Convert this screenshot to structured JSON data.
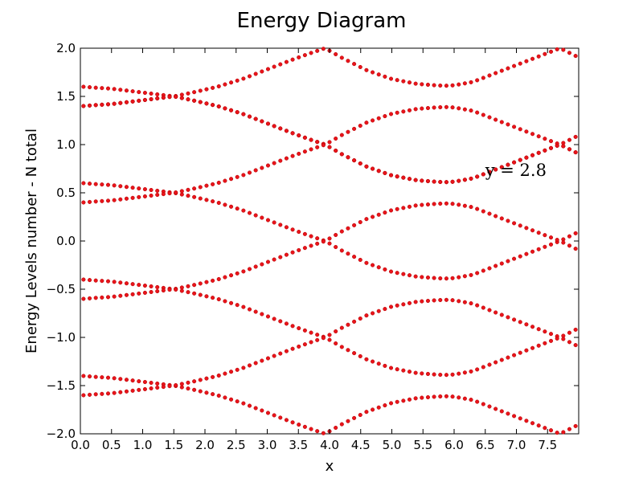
{
  "chart_data": {
    "type": "scatter",
    "title": "Energy Diagram",
    "xlabel": "x",
    "ylabel": "Energy Levels number - N total",
    "xlim": [
      0.0,
      8.0
    ],
    "ylim": [
      -2.0,
      2.0
    ],
    "x_ticks": [
      0.0,
      0.5,
      1.0,
      1.5,
      2.0,
      2.5,
      3.0,
      3.5,
      4.0,
      4.5,
      5.0,
      5.5,
      6.0,
      6.5,
      7.0,
      7.5
    ],
    "x_tick_labels": [
      "0.0",
      "0.5",
      "1.0",
      "1.5",
      "2.0",
      "2.5",
      "3.0",
      "3.5",
      "4.0",
      "4.5",
      "5.0",
      "5.5",
      "6.0",
      "6.5",
      "7.0",
      "7.5"
    ],
    "y_ticks": [
      2.0,
      1.5,
      1.0,
      0.5,
      0.0,
      -0.5,
      -1.0,
      -1.5,
      -2.0
    ],
    "y_tick_labels": [
      "2.0",
      "1.5",
      "1.0",
      "0.5",
      "0.0",
      "−0.5",
      "−1.0",
      "−1.5",
      "−2.0"
    ],
    "grid": false,
    "legend": "none",
    "marker_color": "#e8141b",
    "marker_edge_color": "#b30000",
    "annotations": [
      {
        "text": "y = 2.8",
        "x": 6.5,
        "y": 0.7
      }
    ],
    "series": [
      {
        "x": [
          0.05,
          0.25,
          0.5,
          0.75,
          1.0,
          1.25,
          1.5,
          1.8,
          2.2,
          2.6,
          3.0,
          3.4,
          3.7,
          3.93,
          4.2,
          4.6,
          5.0,
          5.4,
          5.7,
          5.85,
          6.0,
          6.3,
          6.7,
          7.1,
          7.5,
          7.7,
          7.95
        ],
        "y": [
          1.6,
          1.59,
          1.58,
          1.56,
          1.54,
          1.52,
          1.5,
          1.46,
          1.4,
          1.32,
          1.22,
          1.12,
          1.05,
          1.0,
          0.9,
          0.77,
          0.68,
          0.63,
          0.615,
          0.61,
          0.615,
          0.65,
          0.75,
          0.85,
          0.95,
          1.0,
          1.08
        ]
      },
      {
        "x": [
          0.05,
          0.25,
          0.5,
          0.75,
          1.0,
          1.25,
          1.5,
          1.8,
          2.2,
          2.6,
          3.0,
          3.4,
          3.7,
          3.93,
          4.2,
          4.6,
          5.0,
          5.4,
          5.7,
          5.85,
          6.0,
          6.3,
          6.7,
          7.1,
          7.5,
          7.7,
          7.95
        ],
        "y": [
          1.4,
          1.41,
          1.42,
          1.44,
          1.46,
          1.48,
          1.5,
          1.54,
          1.6,
          1.68,
          1.78,
          1.88,
          1.95,
          2.0,
          1.9,
          1.77,
          1.68,
          1.63,
          1.615,
          1.61,
          1.615,
          1.65,
          1.75,
          1.85,
          1.95,
          2.0,
          1.92
        ]
      },
      {
        "x": [
          0.05,
          0.25,
          0.5,
          0.75,
          1.0,
          1.25,
          1.5,
          1.8,
          2.2,
          2.6,
          3.0,
          3.4,
          3.7,
          3.93,
          4.2,
          4.6,
          5.0,
          5.4,
          5.7,
          5.85,
          6.0,
          6.3,
          6.7,
          7.1,
          7.5,
          7.7,
          7.95
        ],
        "y": [
          1.4,
          1.41,
          1.42,
          1.44,
          1.46,
          1.48,
          1.5,
          1.46,
          1.4,
          1.32,
          1.22,
          1.12,
          1.05,
          1.0,
          1.1,
          1.23,
          1.32,
          1.37,
          1.385,
          1.39,
          1.385,
          1.35,
          1.25,
          1.15,
          1.05,
          1.0,
          0.92
        ]
      },
      {
        "x": [
          0.05,
          0.25,
          0.5,
          0.75,
          1.0,
          1.25,
          1.5,
          1.8,
          2.2,
          2.6,
          3.0,
          3.4,
          3.7,
          3.93,
          4.2,
          4.6,
          5.0,
          5.4,
          5.7,
          5.85,
          6.0,
          6.3,
          6.7,
          7.1,
          7.5,
          7.7,
          7.95
        ],
        "y": [
          0.6,
          0.59,
          0.58,
          0.56,
          0.54,
          0.52,
          0.5,
          0.46,
          0.4,
          0.32,
          0.22,
          0.12,
          0.05,
          0.0,
          -0.1,
          -0.23,
          -0.32,
          -0.37,
          -0.385,
          -0.39,
          -0.385,
          -0.35,
          -0.25,
          -0.15,
          -0.05,
          0.0,
          0.08
        ]
      },
      {
        "x": [
          0.05,
          0.25,
          0.5,
          0.75,
          1.0,
          1.25,
          1.5,
          1.8,
          2.2,
          2.6,
          3.0,
          3.4,
          3.7,
          3.93,
          4.2,
          4.6,
          5.0,
          5.4,
          5.7,
          5.85,
          6.0,
          6.3,
          6.7,
          7.1,
          7.5,
          7.7,
          7.95
        ],
        "y": [
          0.4,
          0.41,
          0.42,
          0.44,
          0.46,
          0.48,
          0.5,
          0.54,
          0.6,
          0.68,
          0.78,
          0.88,
          0.95,
          1.0,
          0.9,
          0.77,
          0.68,
          0.63,
          0.615,
          0.61,
          0.615,
          0.65,
          0.75,
          0.85,
          0.95,
          1.0,
          0.92
        ]
      },
      {
        "x": [
          0.05,
          0.25,
          0.5,
          0.75,
          1.0,
          1.25,
          1.5,
          1.8,
          2.2,
          2.6,
          3.0,
          3.4,
          3.7,
          3.93,
          4.2,
          4.6,
          5.0,
          5.4,
          5.7,
          5.85,
          6.0,
          6.3,
          6.7,
          7.1,
          7.5,
          7.7,
          7.95
        ],
        "y": [
          -0.4,
          -0.41,
          -0.42,
          -0.44,
          -0.46,
          -0.48,
          -0.5,
          -0.46,
          -0.4,
          -0.32,
          -0.22,
          -0.12,
          -0.05,
          0.0,
          0.1,
          0.23,
          0.32,
          0.37,
          0.385,
          0.39,
          0.385,
          0.35,
          0.25,
          0.15,
          0.05,
          0.0,
          -0.08
        ]
      },
      {
        "x": [
          0.05,
          0.25,
          0.5,
          0.75,
          1.0,
          1.25,
          1.5,
          1.8,
          2.2,
          2.6,
          3.0,
          3.4,
          3.7,
          3.93,
          4.2,
          4.6,
          5.0,
          5.4,
          5.7,
          5.85,
          6.0,
          6.3,
          6.7,
          7.1,
          7.5,
          7.7,
          7.95
        ],
        "y": [
          -0.6,
          -0.59,
          -0.58,
          -0.56,
          -0.54,
          -0.52,
          -0.5,
          -0.54,
          -0.6,
          -0.68,
          -0.78,
          -0.88,
          -0.95,
          -1.0,
          -0.9,
          -0.77,
          -0.68,
          -0.63,
          -0.615,
          -0.61,
          -0.615,
          -0.65,
          -0.75,
          -0.85,
          -0.95,
          -1.0,
          -0.92
        ]
      },
      {
        "x": [
          0.05,
          0.25,
          0.5,
          0.75,
          1.0,
          1.25,
          1.5,
          1.8,
          2.2,
          2.6,
          3.0,
          3.4,
          3.7,
          3.93,
          4.2,
          4.6,
          5.0,
          5.4,
          5.7,
          5.85,
          6.0,
          6.3,
          6.7,
          7.1,
          7.5,
          7.7,
          7.95
        ],
        "y": [
          -1.4,
          -1.41,
          -1.42,
          -1.44,
          -1.46,
          -1.48,
          -1.5,
          -1.54,
          -1.6,
          -1.68,
          -1.78,
          -1.88,
          -1.95,
          -2.0,
          -1.9,
          -1.77,
          -1.68,
          -1.63,
          -1.615,
          -1.61,
          -1.615,
          -1.65,
          -1.75,
          -1.85,
          -1.95,
          -2.0,
          -1.92
        ]
      },
      {
        "x": [
          0.05,
          0.25,
          0.5,
          0.75,
          1.0,
          1.25,
          1.5,
          1.8,
          2.2,
          2.6,
          3.0,
          3.4,
          3.7,
          3.93,
          4.2,
          4.6,
          5.0,
          5.4,
          5.7,
          5.85,
          6.0,
          6.3,
          6.7,
          7.1,
          7.5,
          7.7,
          7.95
        ],
        "y": [
          -1.6,
          -1.59,
          -1.58,
          -1.56,
          -1.54,
          -1.52,
          -1.5,
          -1.46,
          -1.4,
          -1.32,
          -1.22,
          -1.12,
          -1.05,
          -1.0,
          -1.1,
          -1.23,
          -1.32,
          -1.37,
          -1.385,
          -1.39,
          -1.385,
          -1.35,
          -1.25,
          -1.15,
          -1.05,
          -1.0,
          -1.08
        ]
      }
    ]
  }
}
